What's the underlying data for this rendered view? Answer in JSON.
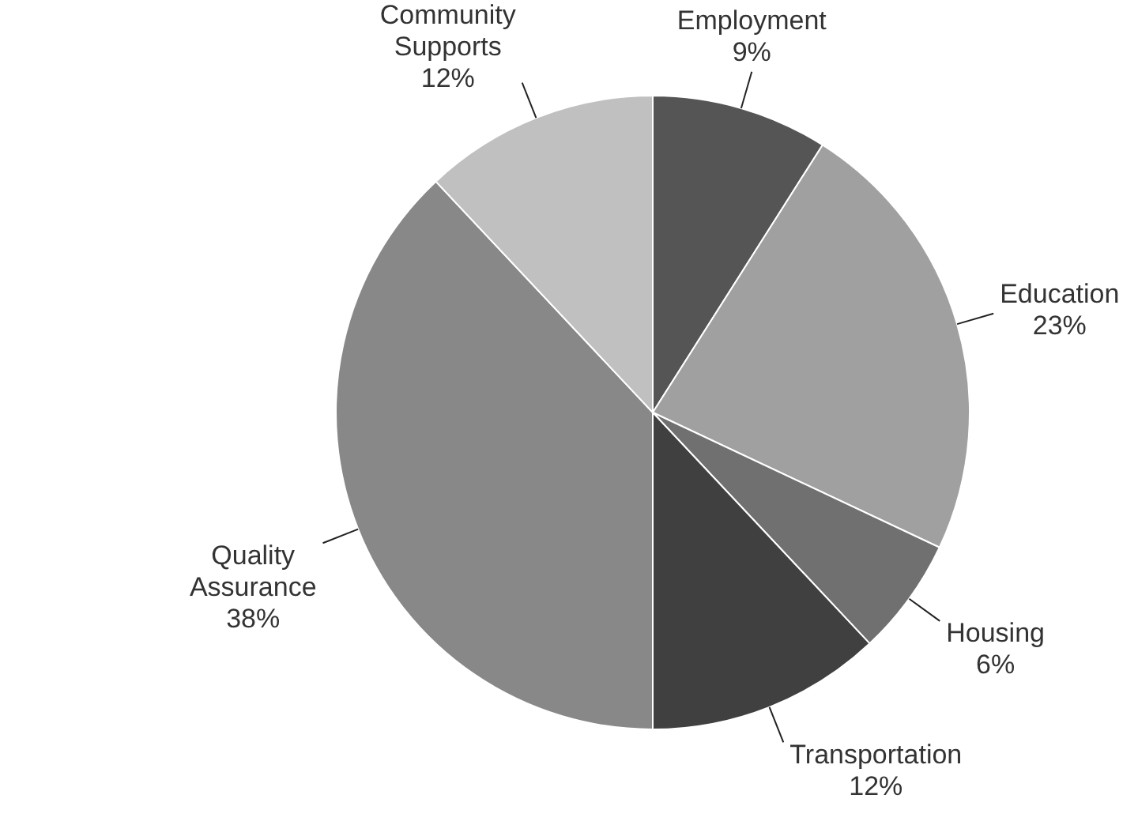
{
  "chart_data": {
    "type": "pie",
    "categories": [
      "Employment",
      "Education",
      "Housing",
      "Transportation",
      "Quality Assurance",
      "Community Supports"
    ],
    "values": [
      9,
      23,
      6,
      12,
      38,
      12
    ],
    "value_labels": [
      "9%",
      "23%",
      "6%",
      "12%",
      "38%",
      "12%"
    ],
    "colors": [
      "#555555",
      "#a0a0a0",
      "#707070",
      "#404040",
      "#888888",
      "#c0c0c0"
    ],
    "legend": false
  }
}
